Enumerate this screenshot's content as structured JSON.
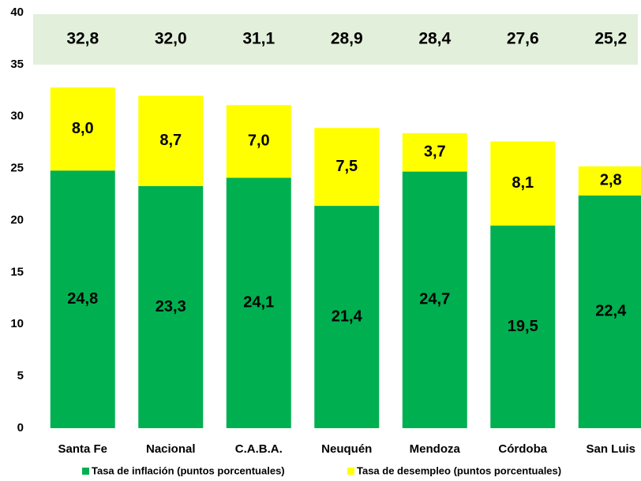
{
  "chart_data": {
    "type": "stacked_bar",
    "categories": [
      "Santa Fe",
      "Nacional",
      "C.A.B.A.",
      "Neuquén",
      "Mendoza",
      "Córdoba",
      "San Luis"
    ],
    "series": [
      {
        "name": "Tasa de inflación (puntos porcentuales)",
        "color": "#00b050",
        "values": [
          24.8,
          23.3,
          24.1,
          21.4,
          24.7,
          19.5,
          22.4
        ],
        "value_labels": [
          "24,8",
          "23,3",
          "24,1",
          "21,4",
          "24,7",
          "19,5",
          "22,4"
        ]
      },
      {
        "name": "Tasa de desempleo (puntos porcentuales)",
        "color": "#ffff00",
        "values": [
          8.0,
          8.7,
          7.0,
          7.5,
          3.7,
          8.1,
          2.8
        ],
        "value_labels": [
          "8,0",
          "8,7",
          "7,0",
          "7,5",
          "3,7",
          "8,1",
          "2,8"
        ]
      }
    ],
    "totals": [
      "32,8",
      "32,0",
      "31,1",
      "28,9",
      "28,4",
      "27,6",
      "25,2"
    ],
    "ylim": [
      0,
      40
    ],
    "yticks": [
      0,
      5,
      10,
      15,
      20,
      25,
      30,
      35,
      40
    ],
    "grid": false,
    "legend": "bottom"
  }
}
